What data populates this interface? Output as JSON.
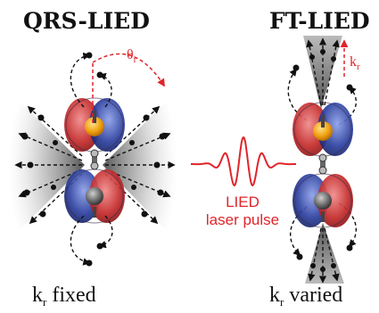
{
  "titles": {
    "left": "QRS-LIED",
    "right": "FT-LIED"
  },
  "captions": {
    "left_k": "k",
    "left_sub": "r",
    "left_rest": "fixed",
    "right_k": "k",
    "right_sub": "r",
    "right_rest": "varied"
  },
  "pulse": {
    "line1": "LIED",
    "line2": "laser pulse"
  },
  "annotations": {
    "theta": "θ",
    "theta_sub": "r",
    "k": "k",
    "k_sub": "r"
  },
  "colors": {
    "accent_red": "#e0252b",
    "lobe_red": "#c42a2a",
    "lobe_blue": "#2b3f9e",
    "core_orange": "#f0a010",
    "core_gray": "#555555",
    "cone_gray": "#9a9a9a",
    "electron": "#111111"
  },
  "icons": [
    "molecule-orbital-icon",
    "laser-pulse-wave-icon",
    "electron-trajectory-icon"
  ]
}
